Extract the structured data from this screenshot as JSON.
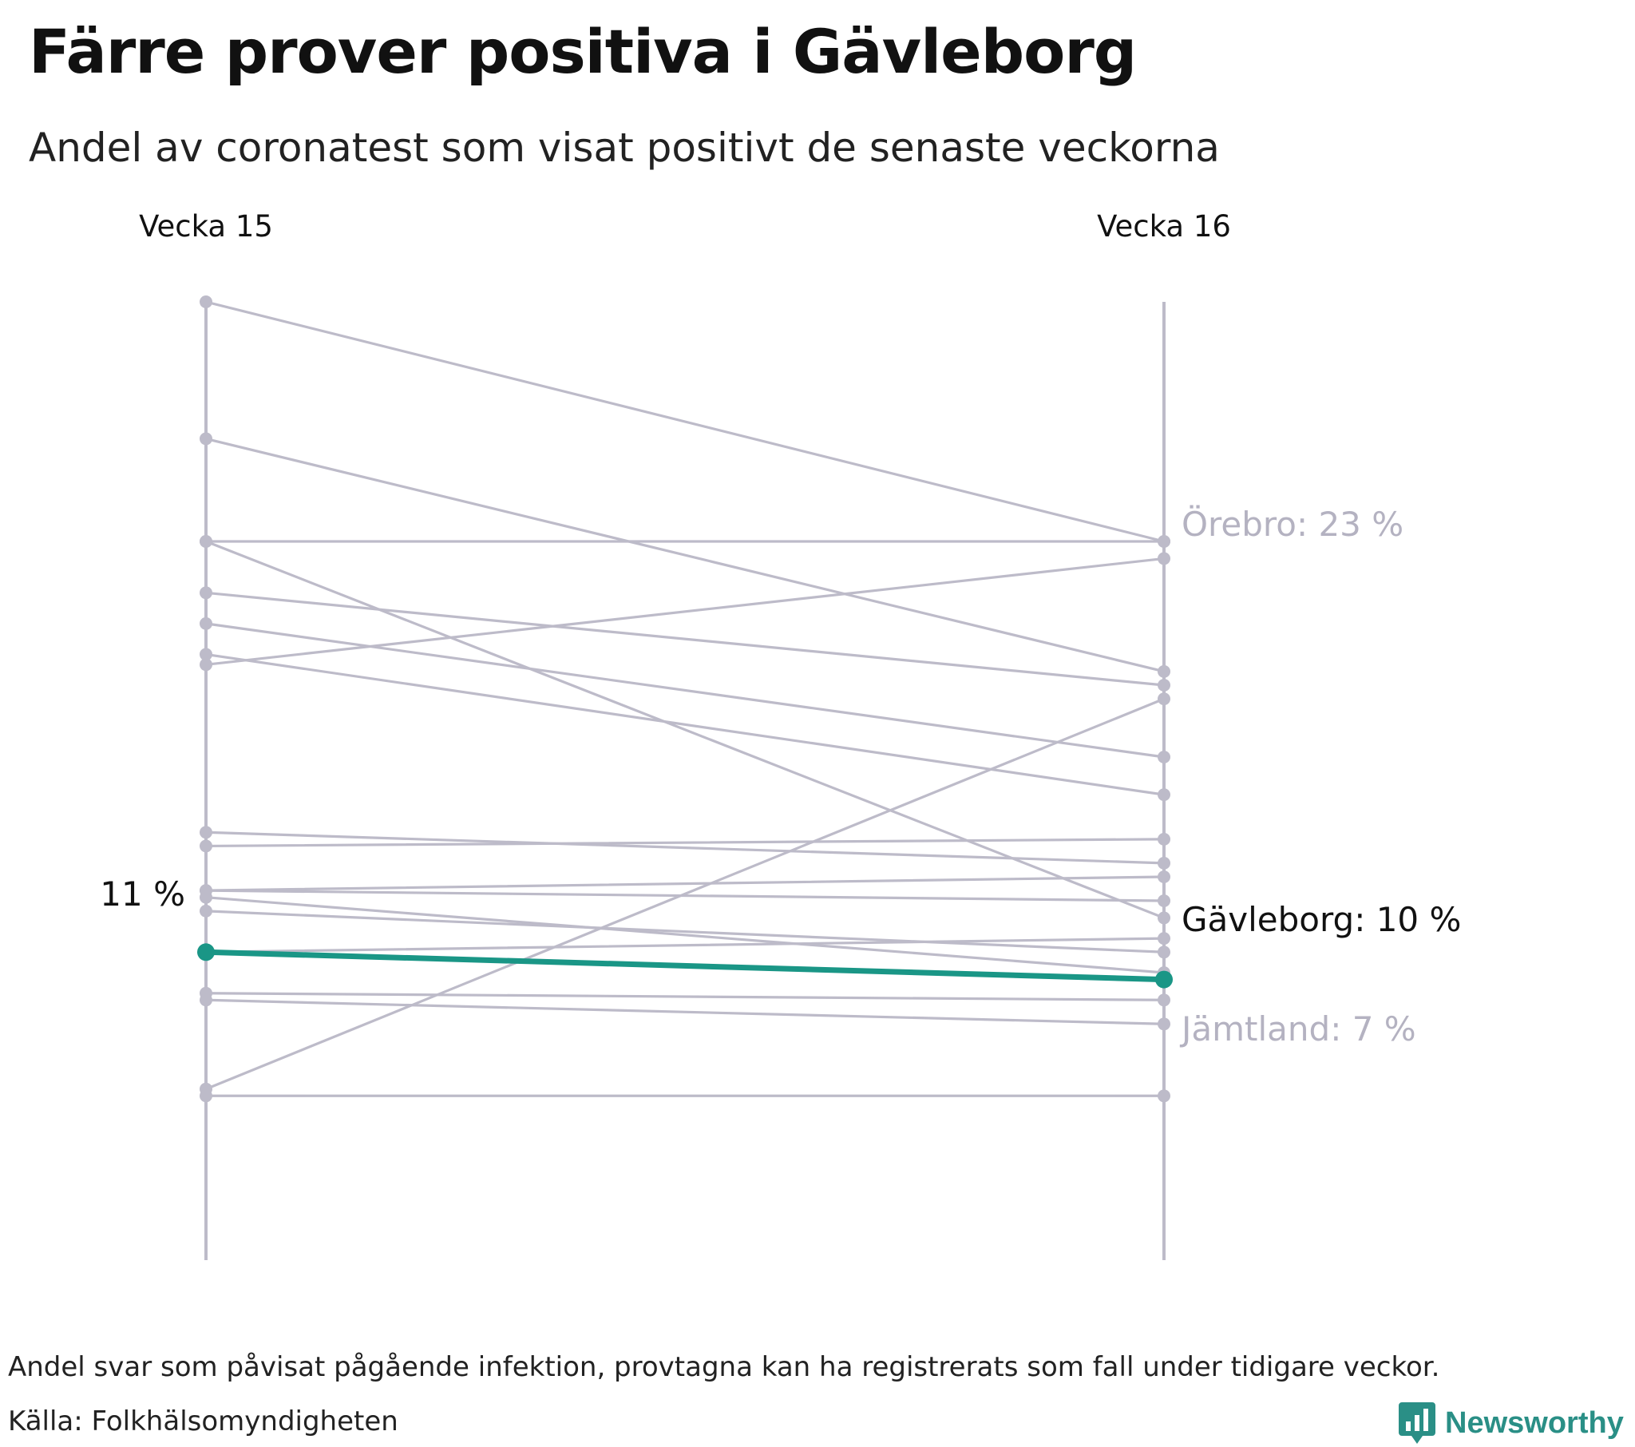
{
  "title": "Färre prover positiva i Gävleborg",
  "subtitle": "Andel av coronatest som visat positivt de senaste veckorna",
  "footnote": "Andel svar som påvisat pågående infektion, provtagna kan ha registrerats som fall under tidigare veckor.",
  "source": "Källa: Folkhälsomyndigheten",
  "brand": "Newsworthy",
  "colors": {
    "muted": "#bdbbc9",
    "highlight": "#1a9686",
    "text": "#111111",
    "muted_text": "#b4b2c1"
  },
  "chart_data": {
    "type": "slope",
    "categories": [
      "Vecka 15",
      "Vecka 16"
    ],
    "ylim": [
      2,
      30
    ],
    "unit": "%",
    "highlight": "Gävleborg",
    "highlight_start_label": "11 %",
    "series": [
      {
        "name": "",
        "values": [
          30.0,
          23.0
        ]
      },
      {
        "name": "",
        "values": [
          26.0,
          19.2
        ]
      },
      {
        "name": "",
        "values": [
          23.0,
          12.0
        ]
      },
      {
        "name": "",
        "values": [
          21.5,
          18.8
        ]
      },
      {
        "name": "",
        "values": [
          20.6,
          16.7
        ]
      },
      {
        "name": "",
        "values": [
          19.7,
          15.6
        ]
      },
      {
        "name": "",
        "values": [
          19.4,
          22.5
        ]
      },
      {
        "name": "",
        "values": [
          14.5,
          13.6
        ]
      },
      {
        "name": "",
        "values": [
          14.1,
          14.3
        ]
      },
      {
        "name": "",
        "values": [
          12.8,
          13.2
        ]
      },
      {
        "name": "",
        "values": [
          12.8,
          12.5
        ]
      },
      {
        "name": "",
        "values": [
          12.6,
          10.4
        ]
      },
      {
        "name": "",
        "values": [
          12.2,
          11.0
        ]
      },
      {
        "name": "",
        "values": [
          11.0,
          11.4
        ]
      },
      {
        "name": "",
        "values": [
          9.8,
          9.6
        ]
      },
      {
        "name": "",
        "values": [
          9.6,
          8.9
        ]
      },
      {
        "name": "",
        "values": [
          7.0,
          18.4
        ]
      },
      {
        "name": "Gävleborg",
        "values": [
          11.0,
          10.2
        ],
        "label": "Gävleborg: 10 %"
      },
      {
        "name": "Örebro",
        "values": [
          23.0,
          23.0
        ],
        "label": "Örebro: 23 %"
      },
      {
        "name": "Jämtland",
        "values": [
          6.8,
          6.8
        ],
        "label": "Jämtland: 7 %"
      }
    ]
  }
}
